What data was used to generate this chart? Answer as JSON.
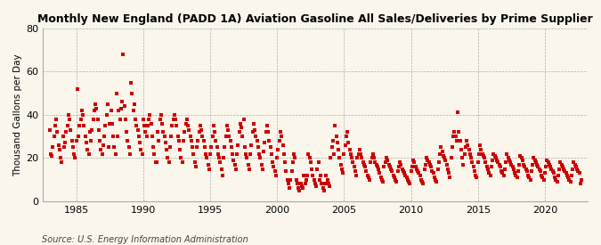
{
  "title": "Monthly New England (PADD 1A) Aviation Gasoline All Sales/Deliveries by Prime Supplier",
  "ylabel": "Thousand Gallons per Day",
  "source": "Source: U.S. Energy Information Administration",
  "background_color": "#FAF6EC",
  "marker_color": "#CC0000",
  "xlim": [
    1982.5,
    2023.2
  ],
  "ylim": [
    0,
    80
  ],
  "yticks": [
    0,
    20,
    40,
    60,
    80
  ],
  "xticks": [
    1985,
    1990,
    1995,
    2000,
    2005,
    2010,
    2015,
    2020
  ],
  "data": [
    [
      1983.0,
      33
    ],
    [
      1983.083,
      22
    ],
    [
      1983.167,
      21
    ],
    [
      1983.25,
      25
    ],
    [
      1983.333,
      30
    ],
    [
      1983.417,
      35
    ],
    [
      1983.5,
      38
    ],
    [
      1983.583,
      32
    ],
    [
      1983.667,
      26
    ],
    [
      1983.75,
      24
    ],
    [
      1983.833,
      20
    ],
    [
      1983.917,
      18
    ],
    [
      1984.0,
      30
    ],
    [
      1984.083,
      25
    ],
    [
      1984.167,
      27
    ],
    [
      1984.25,
      32
    ],
    [
      1984.333,
      35
    ],
    [
      1984.417,
      40
    ],
    [
      1984.5,
      38
    ],
    [
      1984.583,
      33
    ],
    [
      1984.667,
      28
    ],
    [
      1984.75,
      25
    ],
    [
      1984.833,
      22
    ],
    [
      1984.917,
      20
    ],
    [
      1985.0,
      28
    ],
    [
      1985.083,
      52
    ],
    [
      1985.167,
      30
    ],
    [
      1985.25,
      35
    ],
    [
      1985.333,
      38
    ],
    [
      1985.417,
      42
    ],
    [
      1985.5,
      40
    ],
    [
      1985.583,
      35
    ],
    [
      1985.667,
      30
    ],
    [
      1985.75,
      27
    ],
    [
      1985.833,
      24
    ],
    [
      1985.917,
      22
    ],
    [
      1986.0,
      32
    ],
    [
      1986.083,
      28
    ],
    [
      1986.167,
      33
    ],
    [
      1986.25,
      38
    ],
    [
      1986.333,
      42
    ],
    [
      1986.417,
      45
    ],
    [
      1986.5,
      43
    ],
    [
      1986.583,
      38
    ],
    [
      1986.667,
      33
    ],
    [
      1986.75,
      28
    ],
    [
      1986.833,
      24
    ],
    [
      1986.917,
      22
    ],
    [
      1987.0,
      26
    ],
    [
      1987.083,
      30
    ],
    [
      1987.167,
      35
    ],
    [
      1987.25,
      40
    ],
    [
      1987.333,
      45
    ],
    [
      1987.417,
      25
    ],
    [
      1987.5,
      36
    ],
    [
      1987.583,
      42
    ],
    [
      1987.667,
      36
    ],
    [
      1987.75,
      30
    ],
    [
      1987.833,
      25
    ],
    [
      1987.917,
      22
    ],
    [
      1988.0,
      50
    ],
    [
      1988.083,
      30
    ],
    [
      1988.167,
      42
    ],
    [
      1988.25,
      38
    ],
    [
      1988.333,
      43
    ],
    [
      1988.417,
      46
    ],
    [
      1988.5,
      68
    ],
    [
      1988.583,
      44
    ],
    [
      1988.667,
      38
    ],
    [
      1988.75,
      32
    ],
    [
      1988.833,
      28
    ],
    [
      1988.917,
      25
    ],
    [
      1989.0,
      22
    ],
    [
      1989.083,
      55
    ],
    [
      1989.167,
      50
    ],
    [
      1989.25,
      42
    ],
    [
      1989.333,
      45
    ],
    [
      1989.417,
      38
    ],
    [
      1989.5,
      35
    ],
    [
      1989.583,
      33
    ],
    [
      1989.667,
      30
    ],
    [
      1989.75,
      27
    ],
    [
      1989.833,
      24
    ],
    [
      1989.917,
      22
    ],
    [
      1990.0,
      38
    ],
    [
      1990.083,
      35
    ],
    [
      1990.167,
      32
    ],
    [
      1990.25,
      30
    ],
    [
      1990.333,
      35
    ],
    [
      1990.417,
      38
    ],
    [
      1990.5,
      40
    ],
    [
      1990.583,
      36
    ],
    [
      1990.667,
      30
    ],
    [
      1990.75,
      25
    ],
    [
      1990.833,
      22
    ],
    [
      1990.917,
      18
    ],
    [
      1991.0,
      18
    ],
    [
      1991.083,
      32
    ],
    [
      1991.167,
      28
    ],
    [
      1991.25,
      38
    ],
    [
      1991.333,
      40
    ],
    [
      1991.417,
      36
    ],
    [
      1991.5,
      32
    ],
    [
      1991.583,
      30
    ],
    [
      1991.667,
      27
    ],
    [
      1991.75,
      24
    ],
    [
      1991.833,
      20
    ],
    [
      1991.917,
      18
    ],
    [
      1992.0,
      25
    ],
    [
      1992.083,
      30
    ],
    [
      1992.167,
      35
    ],
    [
      1992.25,
      38
    ],
    [
      1992.333,
      40
    ],
    [
      1992.417,
      38
    ],
    [
      1992.5,
      35
    ],
    [
      1992.583,
      30
    ],
    [
      1992.667,
      28
    ],
    [
      1992.75,
      24
    ],
    [
      1992.833,
      20
    ],
    [
      1992.917,
      18
    ],
    [
      1993.0,
      28
    ],
    [
      1993.083,
      32
    ],
    [
      1993.167,
      36
    ],
    [
      1993.25,
      38
    ],
    [
      1993.333,
      35
    ],
    [
      1993.417,
      33
    ],
    [
      1993.5,
      30
    ],
    [
      1993.583,
      28
    ],
    [
      1993.667,
      25
    ],
    [
      1993.75,
      22
    ],
    [
      1993.833,
      18
    ],
    [
      1993.917,
      16
    ],
    [
      1994.0,
      25
    ],
    [
      1994.083,
      28
    ],
    [
      1994.167,
      32
    ],
    [
      1994.25,
      35
    ],
    [
      1994.333,
      33
    ],
    [
      1994.417,
      30
    ],
    [
      1994.5,
      28
    ],
    [
      1994.583,
      25
    ],
    [
      1994.667,
      22
    ],
    [
      1994.75,
      20
    ],
    [
      1994.833,
      17
    ],
    [
      1994.917,
      15
    ],
    [
      1995.0,
      22
    ],
    [
      1995.083,
      25
    ],
    [
      1995.167,
      30
    ],
    [
      1995.25,
      35
    ],
    [
      1995.333,
      32
    ],
    [
      1995.417,
      28
    ],
    [
      1995.5,
      25
    ],
    [
      1995.583,
      22
    ],
    [
      1995.667,
      20
    ],
    [
      1995.75,
      18
    ],
    [
      1995.833,
      15
    ],
    [
      1995.917,
      12
    ],
    [
      1996.0,
      20
    ],
    [
      1996.083,
      25
    ],
    [
      1996.167,
      30
    ],
    [
      1996.25,
      35
    ],
    [
      1996.333,
      33
    ],
    [
      1996.417,
      30
    ],
    [
      1996.5,
      28
    ],
    [
      1996.583,
      25
    ],
    [
      1996.667,
      22
    ],
    [
      1996.75,
      19
    ],
    [
      1996.833,
      17
    ],
    [
      1996.917,
      15
    ],
    [
      1997.0,
      22
    ],
    [
      1997.083,
      26
    ],
    [
      1997.167,
      32
    ],
    [
      1997.25,
      36
    ],
    [
      1997.333,
      34
    ],
    [
      1997.417,
      30
    ],
    [
      1997.5,
      38
    ],
    [
      1997.583,
      25
    ],
    [
      1997.667,
      22
    ],
    [
      1997.75,
      20
    ],
    [
      1997.833,
      17
    ],
    [
      1997.917,
      15
    ],
    [
      1998.0,
      22
    ],
    [
      1998.083,
      26
    ],
    [
      1998.167,
      32
    ],
    [
      1998.25,
      36
    ],
    [
      1998.333,
      33
    ],
    [
      1998.417,
      30
    ],
    [
      1998.5,
      28
    ],
    [
      1998.583,
      25
    ],
    [
      1998.667,
      22
    ],
    [
      1998.75,
      20
    ],
    [
      1998.833,
      17
    ],
    [
      1998.917,
      15
    ],
    [
      1999.0,
      23
    ],
    [
      1999.083,
      27
    ],
    [
      1999.167,
      32
    ],
    [
      1999.25,
      35
    ],
    [
      1999.333,
      32
    ],
    [
      1999.417,
      28
    ],
    [
      1999.5,
      25
    ],
    [
      1999.583,
      22
    ],
    [
      1999.667,
      18
    ],
    [
      1999.75,
      16
    ],
    [
      1999.833,
      14
    ],
    [
      1999.917,
      12
    ],
    [
      2000.0,
      20
    ],
    [
      2000.083,
      24
    ],
    [
      2000.167,
      28
    ],
    [
      2000.25,
      32
    ],
    [
      2000.333,
      30
    ],
    [
      2000.417,
      26
    ],
    [
      2000.5,
      22
    ],
    [
      2000.583,
      18
    ],
    [
      2000.667,
      14
    ],
    [
      2000.75,
      10
    ],
    [
      2000.833,
      8
    ],
    [
      2000.917,
      6
    ],
    [
      2001.0,
      10
    ],
    [
      2001.083,
      14
    ],
    [
      2001.167,
      18
    ],
    [
      2001.25,
      22
    ],
    [
      2001.333,
      20
    ],
    [
      2001.417,
      10
    ],
    [
      2001.5,
      8
    ],
    [
      2001.583,
      6
    ],
    [
      2001.667,
      5
    ],
    [
      2001.75,
      8
    ],
    [
      2001.833,
      7
    ],
    [
      2001.917,
      6
    ],
    [
      2002.0,
      12
    ],
    [
      2002.083,
      8
    ],
    [
      2002.167,
      10
    ],
    [
      2002.25,
      12
    ],
    [
      2002.333,
      22
    ],
    [
      2002.417,
      20
    ],
    [
      2002.5,
      18
    ],
    [
      2002.583,
      15
    ],
    [
      2002.667,
      12
    ],
    [
      2002.75,
      10
    ],
    [
      2002.833,
      8
    ],
    [
      2002.917,
      7
    ],
    [
      2003.0,
      15
    ],
    [
      2003.083,
      18
    ],
    [
      2003.167,
      10
    ],
    [
      2003.25,
      12
    ],
    [
      2003.333,
      8
    ],
    [
      2003.417,
      6
    ],
    [
      2003.5,
      5
    ],
    [
      2003.583,
      8
    ],
    [
      2003.667,
      12
    ],
    [
      2003.75,
      10
    ],
    [
      2003.833,
      8
    ],
    [
      2003.917,
      7
    ],
    [
      2004.0,
      20
    ],
    [
      2004.083,
      25
    ],
    [
      2004.167,
      28
    ],
    [
      2004.25,
      22
    ],
    [
      2004.333,
      35
    ],
    [
      2004.417,
      30
    ],
    [
      2004.5,
      27
    ],
    [
      2004.583,
      24
    ],
    [
      2004.667,
      20
    ],
    [
      2004.75,
      17
    ],
    [
      2004.833,
      15
    ],
    [
      2004.917,
      13
    ],
    [
      2005.0,
      22
    ],
    [
      2005.083,
      26
    ],
    [
      2005.167,
      30
    ],
    [
      2005.25,
      32
    ],
    [
      2005.333,
      27
    ],
    [
      2005.417,
      24
    ],
    [
      2005.5,
      22
    ],
    [
      2005.583,
      20
    ],
    [
      2005.667,
      18
    ],
    [
      2005.75,
      16
    ],
    [
      2005.833,
      14
    ],
    [
      2005.917,
      12
    ],
    [
      2006.0,
      20
    ],
    [
      2006.083,
      22
    ],
    [
      2006.167,
      24
    ],
    [
      2006.25,
      22
    ],
    [
      2006.333,
      20
    ],
    [
      2006.417,
      18
    ],
    [
      2006.5,
      17
    ],
    [
      2006.583,
      16
    ],
    [
      2006.667,
      14
    ],
    [
      2006.75,
      12
    ],
    [
      2006.833,
      11
    ],
    [
      2006.917,
      10
    ],
    [
      2007.0,
      18
    ],
    [
      2007.083,
      20
    ],
    [
      2007.167,
      22
    ],
    [
      2007.25,
      20
    ],
    [
      2007.333,
      18
    ],
    [
      2007.417,
      17
    ],
    [
      2007.5,
      16
    ],
    [
      2007.583,
      15
    ],
    [
      2007.667,
      13
    ],
    [
      2007.75,
      11
    ],
    [
      2007.833,
      10
    ],
    [
      2007.917,
      9
    ],
    [
      2008.0,
      16
    ],
    [
      2008.083,
      18
    ],
    [
      2008.167,
      20
    ],
    [
      2008.25,
      19
    ],
    [
      2008.333,
      17
    ],
    [
      2008.417,
      16
    ],
    [
      2008.5,
      15
    ],
    [
      2008.583,
      14
    ],
    [
      2008.667,
      12
    ],
    [
      2008.75,
      11
    ],
    [
      2008.833,
      10
    ],
    [
      2008.917,
      9
    ],
    [
      2009.0,
      14
    ],
    [
      2009.083,
      16
    ],
    [
      2009.167,
      18
    ],
    [
      2009.25,
      17
    ],
    [
      2009.333,
      15
    ],
    [
      2009.417,
      14
    ],
    [
      2009.5,
      13
    ],
    [
      2009.583,
      12
    ],
    [
      2009.667,
      11
    ],
    [
      2009.75,
      10
    ],
    [
      2009.833,
      9
    ],
    [
      2009.917,
      8
    ],
    [
      2010.0,
      14
    ],
    [
      2010.083,
      16
    ],
    [
      2010.167,
      19
    ],
    [
      2010.25,
      18
    ],
    [
      2010.333,
      16
    ],
    [
      2010.417,
      15
    ],
    [
      2010.5,
      14
    ],
    [
      2010.583,
      13
    ],
    [
      2010.667,
      12
    ],
    [
      2010.75,
      10
    ],
    [
      2010.833,
      9
    ],
    [
      2010.917,
      8
    ],
    [
      2011.0,
      15
    ],
    [
      2011.083,
      17
    ],
    [
      2011.167,
      20
    ],
    [
      2011.25,
      19
    ],
    [
      2011.333,
      18
    ],
    [
      2011.417,
      17
    ],
    [
      2011.5,
      16
    ],
    [
      2011.583,
      14
    ],
    [
      2011.667,
      13
    ],
    [
      2011.75,
      11
    ],
    [
      2011.833,
      10
    ],
    [
      2011.917,
      9
    ],
    [
      2012.0,
      15
    ],
    [
      2012.083,
      18
    ],
    [
      2012.167,
      22
    ],
    [
      2012.25,
      25
    ],
    [
      2012.333,
      23
    ],
    [
      2012.417,
      21
    ],
    [
      2012.5,
      20
    ],
    [
      2012.583,
      19
    ],
    [
      2012.667,
      17
    ],
    [
      2012.75,
      15
    ],
    [
      2012.833,
      13
    ],
    [
      2012.917,
      11
    ],
    [
      2013.0,
      20
    ],
    [
      2013.083,
      25
    ],
    [
      2013.167,
      30
    ],
    [
      2013.25,
      32
    ],
    [
      2013.333,
      30
    ],
    [
      2013.417,
      28
    ],
    [
      2013.5,
      41
    ],
    [
      2013.583,
      32
    ],
    [
      2013.667,
      28
    ],
    [
      2013.75,
      24
    ],
    [
      2013.833,
      20
    ],
    [
      2013.917,
      17
    ],
    [
      2014.0,
      22
    ],
    [
      2014.083,
      25
    ],
    [
      2014.167,
      28
    ],
    [
      2014.25,
      26
    ],
    [
      2014.333,
      24
    ],
    [
      2014.417,
      22
    ],
    [
      2014.5,
      20
    ],
    [
      2014.583,
      18
    ],
    [
      2014.667,
      16
    ],
    [
      2014.75,
      14
    ],
    [
      2014.833,
      12
    ],
    [
      2014.917,
      11
    ],
    [
      2015.0,
      18
    ],
    [
      2015.083,
      22
    ],
    [
      2015.167,
      26
    ],
    [
      2015.25,
      24
    ],
    [
      2015.333,
      22
    ],
    [
      2015.417,
      21
    ],
    [
      2015.5,
      20
    ],
    [
      2015.583,
      18
    ],
    [
      2015.667,
      16
    ],
    [
      2015.75,
      15
    ],
    [
      2015.833,
      13
    ],
    [
      2015.917,
      12
    ],
    [
      2016.0,
      16
    ],
    [
      2016.083,
      19
    ],
    [
      2016.167,
      22
    ],
    [
      2016.25,
      21
    ],
    [
      2016.333,
      20
    ],
    [
      2016.417,
      19
    ],
    [
      2016.5,
      18
    ],
    [
      2016.583,
      17
    ],
    [
      2016.667,
      16
    ],
    [
      2016.75,
      14
    ],
    [
      2016.833,
      13
    ],
    [
      2016.917,
      12
    ],
    [
      2017.0,
      15
    ],
    [
      2017.083,
      18
    ],
    [
      2017.167,
      22
    ],
    [
      2017.25,
      20
    ],
    [
      2017.333,
      19
    ],
    [
      2017.417,
      18
    ],
    [
      2017.5,
      17
    ],
    [
      2017.583,
      16
    ],
    [
      2017.667,
      15
    ],
    [
      2017.75,
      13
    ],
    [
      2017.833,
      12
    ],
    [
      2017.917,
      11
    ],
    [
      2018.0,
      14
    ],
    [
      2018.083,
      17
    ],
    [
      2018.167,
      21
    ],
    [
      2018.25,
      20
    ],
    [
      2018.333,
      19
    ],
    [
      2018.417,
      17
    ],
    [
      2018.5,
      16
    ],
    [
      2018.583,
      15
    ],
    [
      2018.667,
      14
    ],
    [
      2018.75,
      12
    ],
    [
      2018.833,
      11
    ],
    [
      2018.917,
      10
    ],
    [
      2019.0,
      14
    ],
    [
      2019.083,
      17
    ],
    [
      2019.167,
      20
    ],
    [
      2019.25,
      19
    ],
    [
      2019.333,
      18
    ],
    [
      2019.417,
      17
    ],
    [
      2019.5,
      16
    ],
    [
      2019.583,
      15
    ],
    [
      2019.667,
      14
    ],
    [
      2019.75,
      12
    ],
    [
      2019.833,
      11
    ],
    [
      2019.917,
      10
    ],
    [
      2020.0,
      13
    ],
    [
      2020.083,
      16
    ],
    [
      2020.167,
      19
    ],
    [
      2020.25,
      18
    ],
    [
      2020.333,
      17
    ],
    [
      2020.417,
      16
    ],
    [
      2020.5,
      15
    ],
    [
      2020.583,
      14
    ],
    [
      2020.667,
      13
    ],
    [
      2020.75,
      11
    ],
    [
      2020.833,
      10
    ],
    [
      2020.917,
      9
    ],
    [
      2021.0,
      12
    ],
    [
      2021.083,
      15
    ],
    [
      2021.167,
      18
    ],
    [
      2021.25,
      17
    ],
    [
      2021.333,
      16
    ],
    [
      2021.417,
      15
    ],
    [
      2021.5,
      14
    ],
    [
      2021.583,
      13
    ],
    [
      2021.667,
      12
    ],
    [
      2021.75,
      11
    ],
    [
      2021.833,
      10
    ],
    [
      2021.917,
      9
    ],
    [
      2022.0,
      12
    ],
    [
      2022.083,
      15
    ],
    [
      2022.167,
      18
    ],
    [
      2022.25,
      17
    ],
    [
      2022.333,
      16
    ],
    [
      2022.417,
      15
    ],
    [
      2022.5,
      14
    ],
    [
      2022.583,
      13
    ],
    [
      2022.667,
      8
    ],
    [
      2022.75,
      10
    ]
  ]
}
